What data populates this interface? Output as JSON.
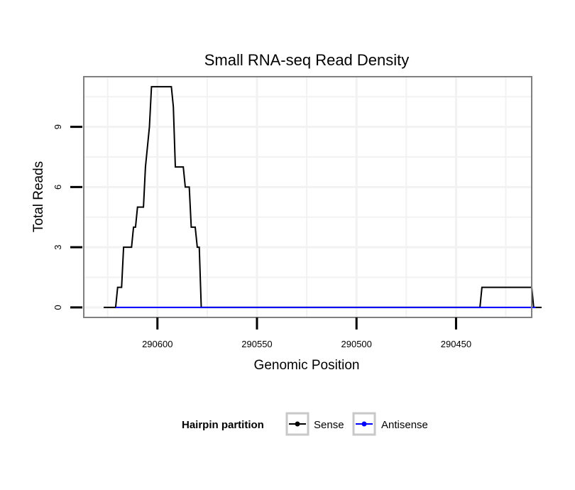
{
  "chart_data": {
    "type": "line",
    "title": "Small RNA-seq Read Density",
    "xlabel": "Genomic Position",
    "ylabel": "Total Reads",
    "x_reversed": true,
    "xlim": [
      290637,
      290412
    ],
    "ylim": [
      -0.5,
      11.5
    ],
    "x_ticks": [
      290600,
      290550,
      290500,
      290450
    ],
    "y_ticks": [
      0,
      3,
      6,
      9
    ],
    "grid": true,
    "legend": {
      "title": "Hairpin partition",
      "position": "bottom",
      "entries": [
        {
          "name": "Sense",
          "color": "#000000"
        },
        {
          "name": "Antisense",
          "color": "#0000ff"
        }
      ]
    },
    "series": [
      {
        "name": "Sense",
        "color": "#000000",
        "points": [
          [
            290627,
            0
          ],
          [
            290621,
            0
          ],
          [
            290620,
            1
          ],
          [
            290618,
            1
          ],
          [
            290617,
            3
          ],
          [
            290613,
            3
          ],
          [
            290612,
            4
          ],
          [
            290611,
            4
          ],
          [
            290610,
            5
          ],
          [
            290607,
            5
          ],
          [
            290606,
            7
          ],
          [
            290604,
            9
          ],
          [
            290603,
            11
          ],
          [
            290593,
            11
          ],
          [
            290592,
            10
          ],
          [
            290591,
            7
          ],
          [
            290587,
            7
          ],
          [
            290586,
            6
          ],
          [
            290584,
            6
          ],
          [
            290583,
            4
          ],
          [
            290581,
            4
          ],
          [
            290580,
            3
          ],
          [
            290579,
            3
          ],
          [
            290578,
            0
          ],
          [
            290438,
            0
          ],
          [
            290437,
            1
          ],
          [
            290412,
            1
          ],
          [
            290411,
            0
          ],
          [
            290407,
            0
          ]
        ]
      },
      {
        "name": "Antisense",
        "color": "#0000ff",
        "points": [
          [
            290621,
            0
          ],
          [
            290410,
            0
          ]
        ]
      }
    ]
  }
}
